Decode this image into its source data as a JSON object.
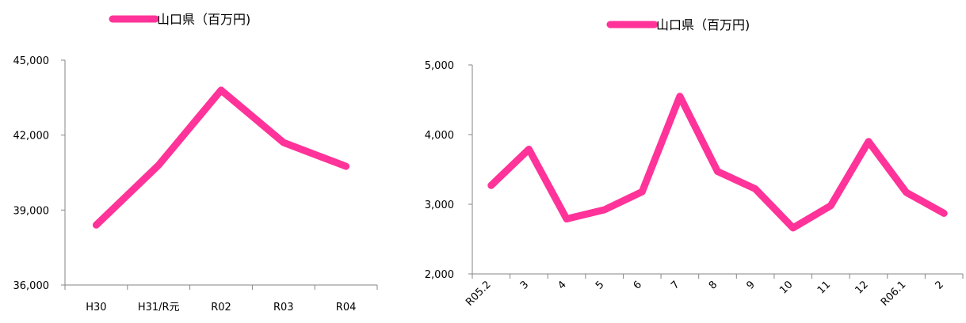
{
  "chart_data": [
    {
      "type": "line",
      "x": [
        "H30",
        "H31/R元",
        "R02",
        "R03",
        "R04"
      ],
      "series": [
        {
          "name": "山口県（百万円)",
          "values": [
            38400,
            40800,
            43800,
            41700,
            40750
          ],
          "color": "#FF3399"
        }
      ],
      "ylim": [
        36000,
        45000
      ],
      "yticks": [
        36000,
        39000,
        42000,
        45000
      ],
      "ytick_labels": [
        "36,000",
        "39,000",
        "42,000",
        "45,000"
      ],
      "legend_position": "top-left",
      "grid": false
    },
    {
      "type": "line",
      "x": [
        "R05.2",
        "3",
        "4",
        "5",
        "6",
        "7",
        "8",
        "9",
        "10",
        "11",
        "12",
        "R06.1",
        "2"
      ],
      "series": [
        {
          "name": "山口県（百万円)",
          "values": [
            3270,
            3790,
            2790,
            2920,
            3180,
            4550,
            3470,
            3220,
            2660,
            2980,
            3900,
            3170,
            2870
          ],
          "color": "#FF3399"
        }
      ],
      "ylim": [
        2000,
        5000
      ],
      "yticks": [
        2000,
        3000,
        4000,
        5000
      ],
      "ytick_labels": [
        "2,000",
        "3,000",
        "4,000",
        "5,000"
      ],
      "legend_position": "top-center",
      "grid": false
    }
  ]
}
